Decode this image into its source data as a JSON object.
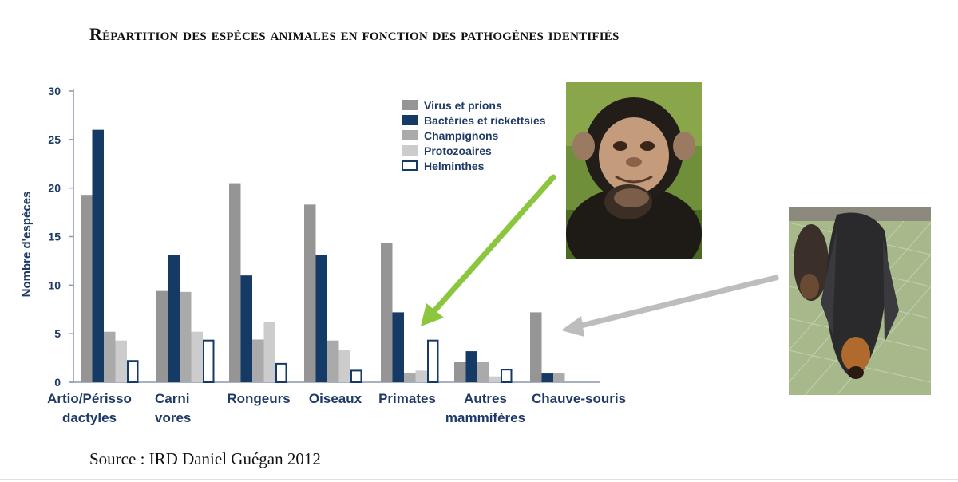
{
  "title": "Répartition des espèces animales en fonction des pathogènes identifiés",
  "source": "Source : IRD Daniel Guégan 2012",
  "chart_data": {
    "type": "bar",
    "ylabel": "Nombre d'espèces",
    "ylim": [
      0,
      30
    ],
    "yticks": [
      "0",
      "5",
      "10",
      "15",
      "20",
      "25",
      "30"
    ],
    "categories": [
      [
        "Artio/Périsso",
        "dactyles"
      ],
      [
        "Carni",
        "vores"
      ],
      [
        "Rongeurs"
      ],
      [
        "Oiseaux"
      ],
      [
        "Primates"
      ],
      [
        "Autres",
        "mammifères"
      ],
      [
        "Chauve-souris"
      ]
    ],
    "series": [
      {
        "name": "Virus et prions",
        "color": "#959595",
        "values": [
          19.3,
          9.4,
          20.5,
          18.3,
          14.3,
          2.1,
          7.2
        ]
      },
      {
        "name": "Bactéries et rickettsies",
        "color": "#163a66",
        "values": [
          26.0,
          13.1,
          11.0,
          13.1,
          7.2,
          3.2,
          0.9
        ]
      },
      {
        "name": "Champignons",
        "color": "#aaaaaa",
        "values": [
          5.2,
          9.3,
          4.4,
          4.3,
          0.9,
          2.1,
          0.9
        ]
      },
      {
        "name": "Protozoaires",
        "color": "#cccccc",
        "values": [
          4.3,
          5.2,
          6.2,
          3.3,
          1.2,
          0.6,
          0.0
        ]
      },
      {
        "name": "Helminthes",
        "color": "#ffffff",
        "stroke": "#163a66",
        "values": [
          2.2,
          4.3,
          1.9,
          1.2,
          4.3,
          1.3,
          0.0
        ]
      }
    ],
    "legend_position": "top-right"
  },
  "images": [
    {
      "name": "chimpanzee-photo",
      "description": "chimpanzé pensif"
    },
    {
      "name": "bat-photo",
      "description": "roussette suspendue"
    }
  ],
  "colors": {
    "arrow_green": "#8cc63f",
    "arrow_gray": "#bdbdbd",
    "axis_text": "#1f3a66"
  }
}
